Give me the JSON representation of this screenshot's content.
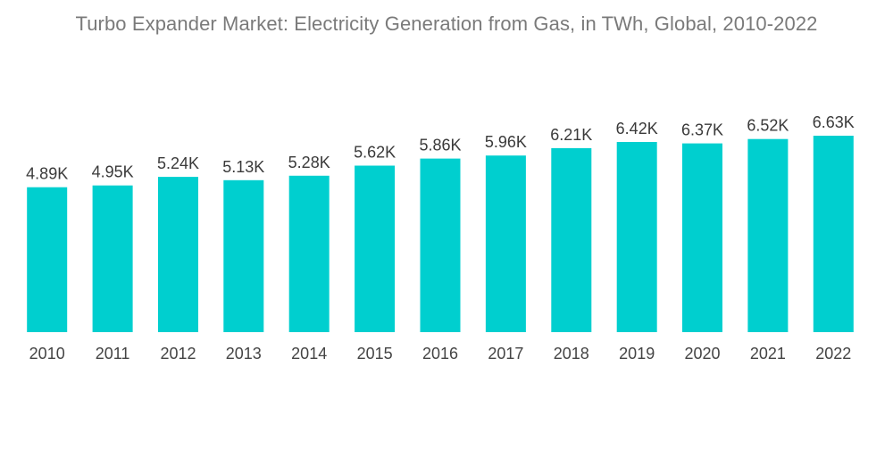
{
  "chart_data": {
    "type": "bar",
    "title": "Turbo Expander Market: Electricity Generation from Gas, in TWh, Global, 2010-2022",
    "categories": [
      "2010",
      "2011",
      "2012",
      "2013",
      "2014",
      "2015",
      "2016",
      "2017",
      "2018",
      "2019",
      "2020",
      "2021",
      "2022"
    ],
    "values": [
      4890,
      4950,
      5240,
      5130,
      5280,
      5620,
      5860,
      5960,
      6210,
      6420,
      6370,
      6520,
      6630
    ],
    "value_labels": [
      "4.89K",
      "4.95K",
      "5.24K",
      "5.13K",
      "5.28K",
      "5.62K",
      "5.86K",
      "5.96K",
      "6.21K",
      "6.42K",
      "6.37K",
      "6.52K",
      "6.63K"
    ],
    "xlabel": "",
    "ylabel": "",
    "ylim": [
      0,
      6630
    ],
    "grid": false,
    "legend": "none",
    "bar_color": "#00CFCF"
  }
}
